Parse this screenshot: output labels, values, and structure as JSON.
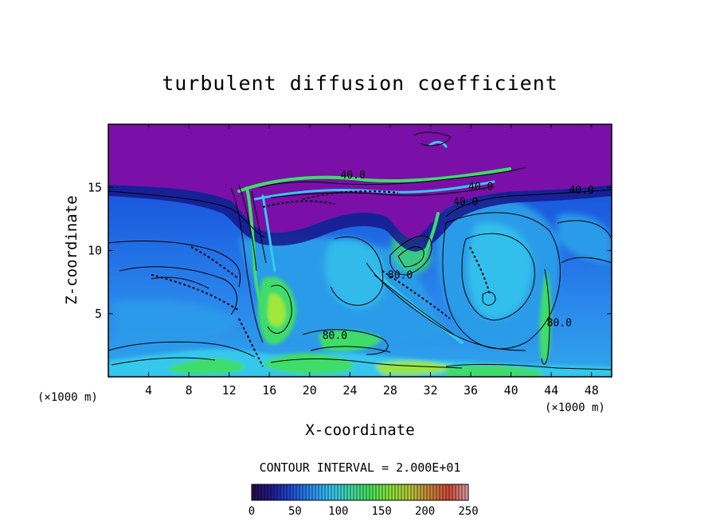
{
  "chart_data": {
    "type": "heatmap",
    "title": "turbulent diffusion coefficient",
    "xlabel": "X-coordinate",
    "ylabel": "Z-coordinate",
    "x_unit": "(×1000 m)",
    "x_unit_right": "(×1000 m)",
    "xlim": [
      0,
      50
    ],
    "ylim": [
      0,
      20
    ],
    "x_ticks": [
      4,
      8,
      12,
      16,
      20,
      24,
      28,
      32,
      36,
      40,
      44,
      48
    ],
    "y_ticks": [
      5,
      10,
      15
    ],
    "contour_interval_text": "CONTOUR INTERVAL = 2.000E+01",
    "contour_labels": [
      {
        "text": "40.0",
        "x": 24.3,
        "y": 15.7
      },
      {
        "text": "40.0",
        "x": 47.0,
        "y": 14.5
      },
      {
        "text": "40.0",
        "x": 35.5,
        "y": 13.6
      },
      {
        "text": "40.0",
        "x": 37.0,
        "y": 14.8
      },
      {
        "text": "80.0",
        "x": 29.0,
        "y": 7.8
      },
      {
        "text": "80.0",
        "x": 22.5,
        "y": 3.0
      },
      {
        "text": "80.0",
        "x": 44.8,
        "y": 4.0
      }
    ],
    "colorbar": {
      "min": 0,
      "max": 250,
      "ticks": [
        0,
        50,
        100,
        150,
        200,
        250
      ],
      "colors": [
        "#2a0b45",
        "#201a8f",
        "#1f4bd4",
        "#2a8ef0",
        "#35c4f2",
        "#40d9a8",
        "#46e35e",
        "#8ae53c",
        "#b7c93a",
        "#c9873a",
        "#d24a3a",
        "#d8a0a0"
      ]
    },
    "field_colors": {
      "upper_layer": "#7a10a8",
      "mid_blue": "#1c4fe0",
      "light_blue": "#2a9be8",
      "cyan": "#36c8ec",
      "green": "#3fdc6a",
      "lime": "#a2e83a"
    }
  }
}
